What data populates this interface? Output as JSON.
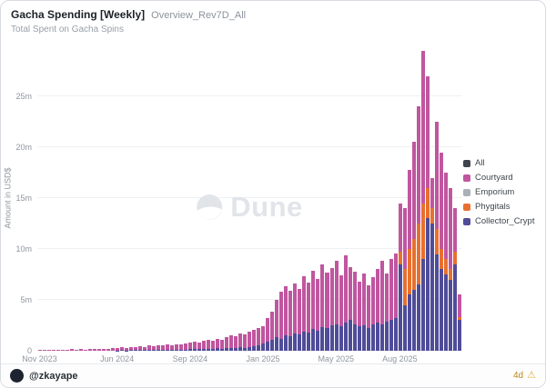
{
  "header": {
    "title": "Gacha Spending [Weekly]",
    "query_name": "Overview_Rev7D_All",
    "subtitle": "Total Spent on Gacha Spins"
  },
  "watermark": {
    "text": "Dune"
  },
  "footer": {
    "author_handle": "@zkayape",
    "age_badge": "4d",
    "warning_icon": "⚠"
  },
  "chart_data": {
    "type": "bar",
    "stacked": true,
    "title": "Gacha Spending [Weekly]",
    "subtitle": "Total Spent on Gacha Spins",
    "ylabel": "Amount in USD$",
    "unit": "millions USD",
    "ylim_m": [
      0,
      30
    ],
    "grid": true,
    "legend_position": "right",
    "y_ticks": [
      {
        "value_m": 0,
        "label": "0"
      },
      {
        "value_m": 5,
        "label": "5m"
      },
      {
        "value_m": 10,
        "label": "10m"
      },
      {
        "value_m": 15,
        "label": "15m"
      },
      {
        "value_m": 20,
        "label": "20m"
      },
      {
        "value_m": 25,
        "label": "25m"
      }
    ],
    "x_ticks": [
      {
        "index": 0,
        "label": "Nov 2023"
      },
      {
        "index": 17,
        "label": "Jun 2024"
      },
      {
        "index": 33,
        "label": "Sep 2024"
      },
      {
        "index": 49,
        "label": "Jan 2025"
      },
      {
        "index": 65,
        "label": "May 2025"
      },
      {
        "index": 79,
        "label": "Aug 2025"
      }
    ],
    "stack_order": [
      "Collector_Crypt",
      "Phygitals",
      "Courtyard"
    ],
    "series": [
      {
        "name": "All",
        "color": "#3e444c",
        "values": []
      },
      {
        "name": "Courtyard",
        "color": "#c0569f",
        "values": [
          0.05,
          0.07,
          0.06,
          0.1,
          0.08,
          0.12,
          0.1,
          0.14,
          0.12,
          0.15,
          0.13,
          0.17,
          0.15,
          0.2,
          0.18,
          0.22,
          0.25,
          0.26,
          0.3,
          0.26,
          0.34,
          0.3,
          0.38,
          0.34,
          0.42,
          0.38,
          0.46,
          0.42,
          0.5,
          0.46,
          0.54,
          0.5,
          0.58,
          0.65,
          0.72,
          0.7,
          0.8,
          0.9,
          0.77,
          0.95,
          0.9,
          1.05,
          1.2,
          1.12,
          1.35,
          1.3,
          1.5,
          1.65,
          1.7,
          1.7,
          2.3,
          2.7,
          3.7,
          4.6,
          4.8,
          4.5,
          4.9,
          4.5,
          5.4,
          4.9,
          5.8,
          5.1,
          6.2,
          5.5,
          5.6,
          6.2,
          5.0,
          6.6,
          5.2,
          5.2,
          4.4,
          5.1,
          4.2,
          4.6,
          5.2,
          6.2,
          4.7,
          6.0,
          6.4,
          4.8,
          6.0,
          7.8,
          9.5,
          11.5,
          15.0,
          11.0,
          3.0,
          10.5,
          9.5,
          8.5,
          8.0,
          4.3,
          2.2
        ]
      },
      {
        "name": "Emporium",
        "color": "#aab0b8",
        "values": []
      },
      {
        "name": "Phygitals",
        "color": "#e8702e",
        "values": [
          0,
          0,
          0,
          0,
          0,
          0,
          0,
          0,
          0,
          0,
          0,
          0,
          0,
          0,
          0,
          0,
          0,
          0,
          0,
          0,
          0,
          0,
          0,
          0,
          0,
          0,
          0,
          0,
          0,
          0,
          0,
          0,
          0,
          0,
          0,
          0,
          0,
          0,
          0,
          0,
          0,
          0,
          0,
          0,
          0,
          0,
          0,
          0,
          0,
          0,
          0,
          0,
          0,
          0,
          0,
          0,
          0,
          0,
          0,
          0,
          0,
          0,
          0,
          0,
          0,
          0,
          0,
          0,
          0,
          0,
          0,
          0,
          0,
          0,
          0,
          0,
          0,
          0,
          0,
          1.2,
          3.5,
          4.5,
          5.0,
          6.0,
          5.5,
          3.0,
          1.5,
          2.5,
          2.0,
          1.5,
          1.0,
          1.2,
          0.3
        ]
      },
      {
        "name": "Collector_Crypt",
        "color": "#4f4c99",
        "values": [
          0,
          0,
          0,
          0,
          0,
          0,
          0,
          0,
          0,
          0,
          0,
          0,
          0,
          0,
          0,
          0,
          0,
          0.04,
          0.05,
          0.04,
          0.06,
          0.05,
          0.07,
          0.06,
          0.08,
          0.07,
          0.09,
          0.08,
          0.1,
          0.09,
          0.11,
          0.1,
          0.12,
          0.15,
          0.18,
          0.15,
          0.2,
          0.2,
          0.18,
          0.25,
          0.2,
          0.25,
          0.3,
          0.28,
          0.35,
          0.3,
          0.4,
          0.45,
          0.5,
          0.7,
          0.9,
          1.1,
          1.3,
          1.2,
          1.5,
          1.4,
          1.7,
          1.6,
          1.9,
          1.8,
          2.1,
          2.0,
          2.3,
          2.2,
          2.5,
          2.6,
          2.4,
          2.8,
          3.0,
          2.6,
          2.4,
          2.5,
          2.2,
          2.6,
          2.8,
          2.6,
          2.9,
          3.0,
          3.2,
          8.5,
          4.5,
          5.5,
          6.0,
          6.5,
          9.0,
          13.0,
          12.5,
          9.5,
          8.0,
          7.5,
          7.0,
          8.5,
          3.0
        ]
      }
    ]
  }
}
